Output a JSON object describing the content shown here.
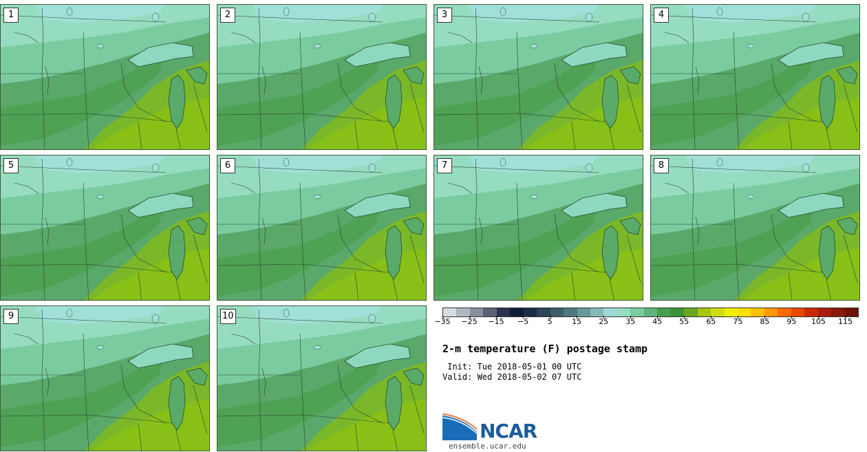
{
  "panels": [
    {
      "label": "1"
    },
    {
      "label": "2"
    },
    {
      "label": "3"
    },
    {
      "label": "4"
    },
    {
      "label": "5"
    },
    {
      "label": "6"
    },
    {
      "label": "7"
    },
    {
      "label": "8"
    },
    {
      "label": "9"
    },
    {
      "label": "10"
    }
  ],
  "colorbar": {
    "colors": [
      "#d8dce4",
      "#b0b6c0",
      "#8890a0",
      "#5a6278",
      "#2a3450",
      "#101c38",
      "#1a2c48",
      "#2a4658",
      "#3a5e6a",
      "#4e7a80",
      "#68989c",
      "#86b8b8",
      "#a0d8d4",
      "#96dcc0",
      "#7acca0",
      "#60b47c",
      "#4a9e4c",
      "#3c9038",
      "#6aa620",
      "#a8c414",
      "#d0dc10",
      "#f0f000",
      "#ffe000",
      "#ffc000",
      "#ff9800",
      "#ff6a00",
      "#e84800",
      "#c82a00",
      "#a81c10",
      "#881808",
      "#6a1408"
    ],
    "ticks": [
      "−35",
      "−25",
      "−15",
      "−5",
      "5",
      "15",
      "25",
      "35",
      "45",
      "55",
      "65",
      "75",
      "85",
      "95",
      "105",
      "115"
    ]
  },
  "title": "2-m temperature (F) postage stamp",
  "init": " Init: Tue 2018-05-01 00 UTC",
  "valid": "Valid: Wed 2018-05-02 07 UTC",
  "logo_text": "NCAR",
  "site": "ensemble.ucar.edu"
}
